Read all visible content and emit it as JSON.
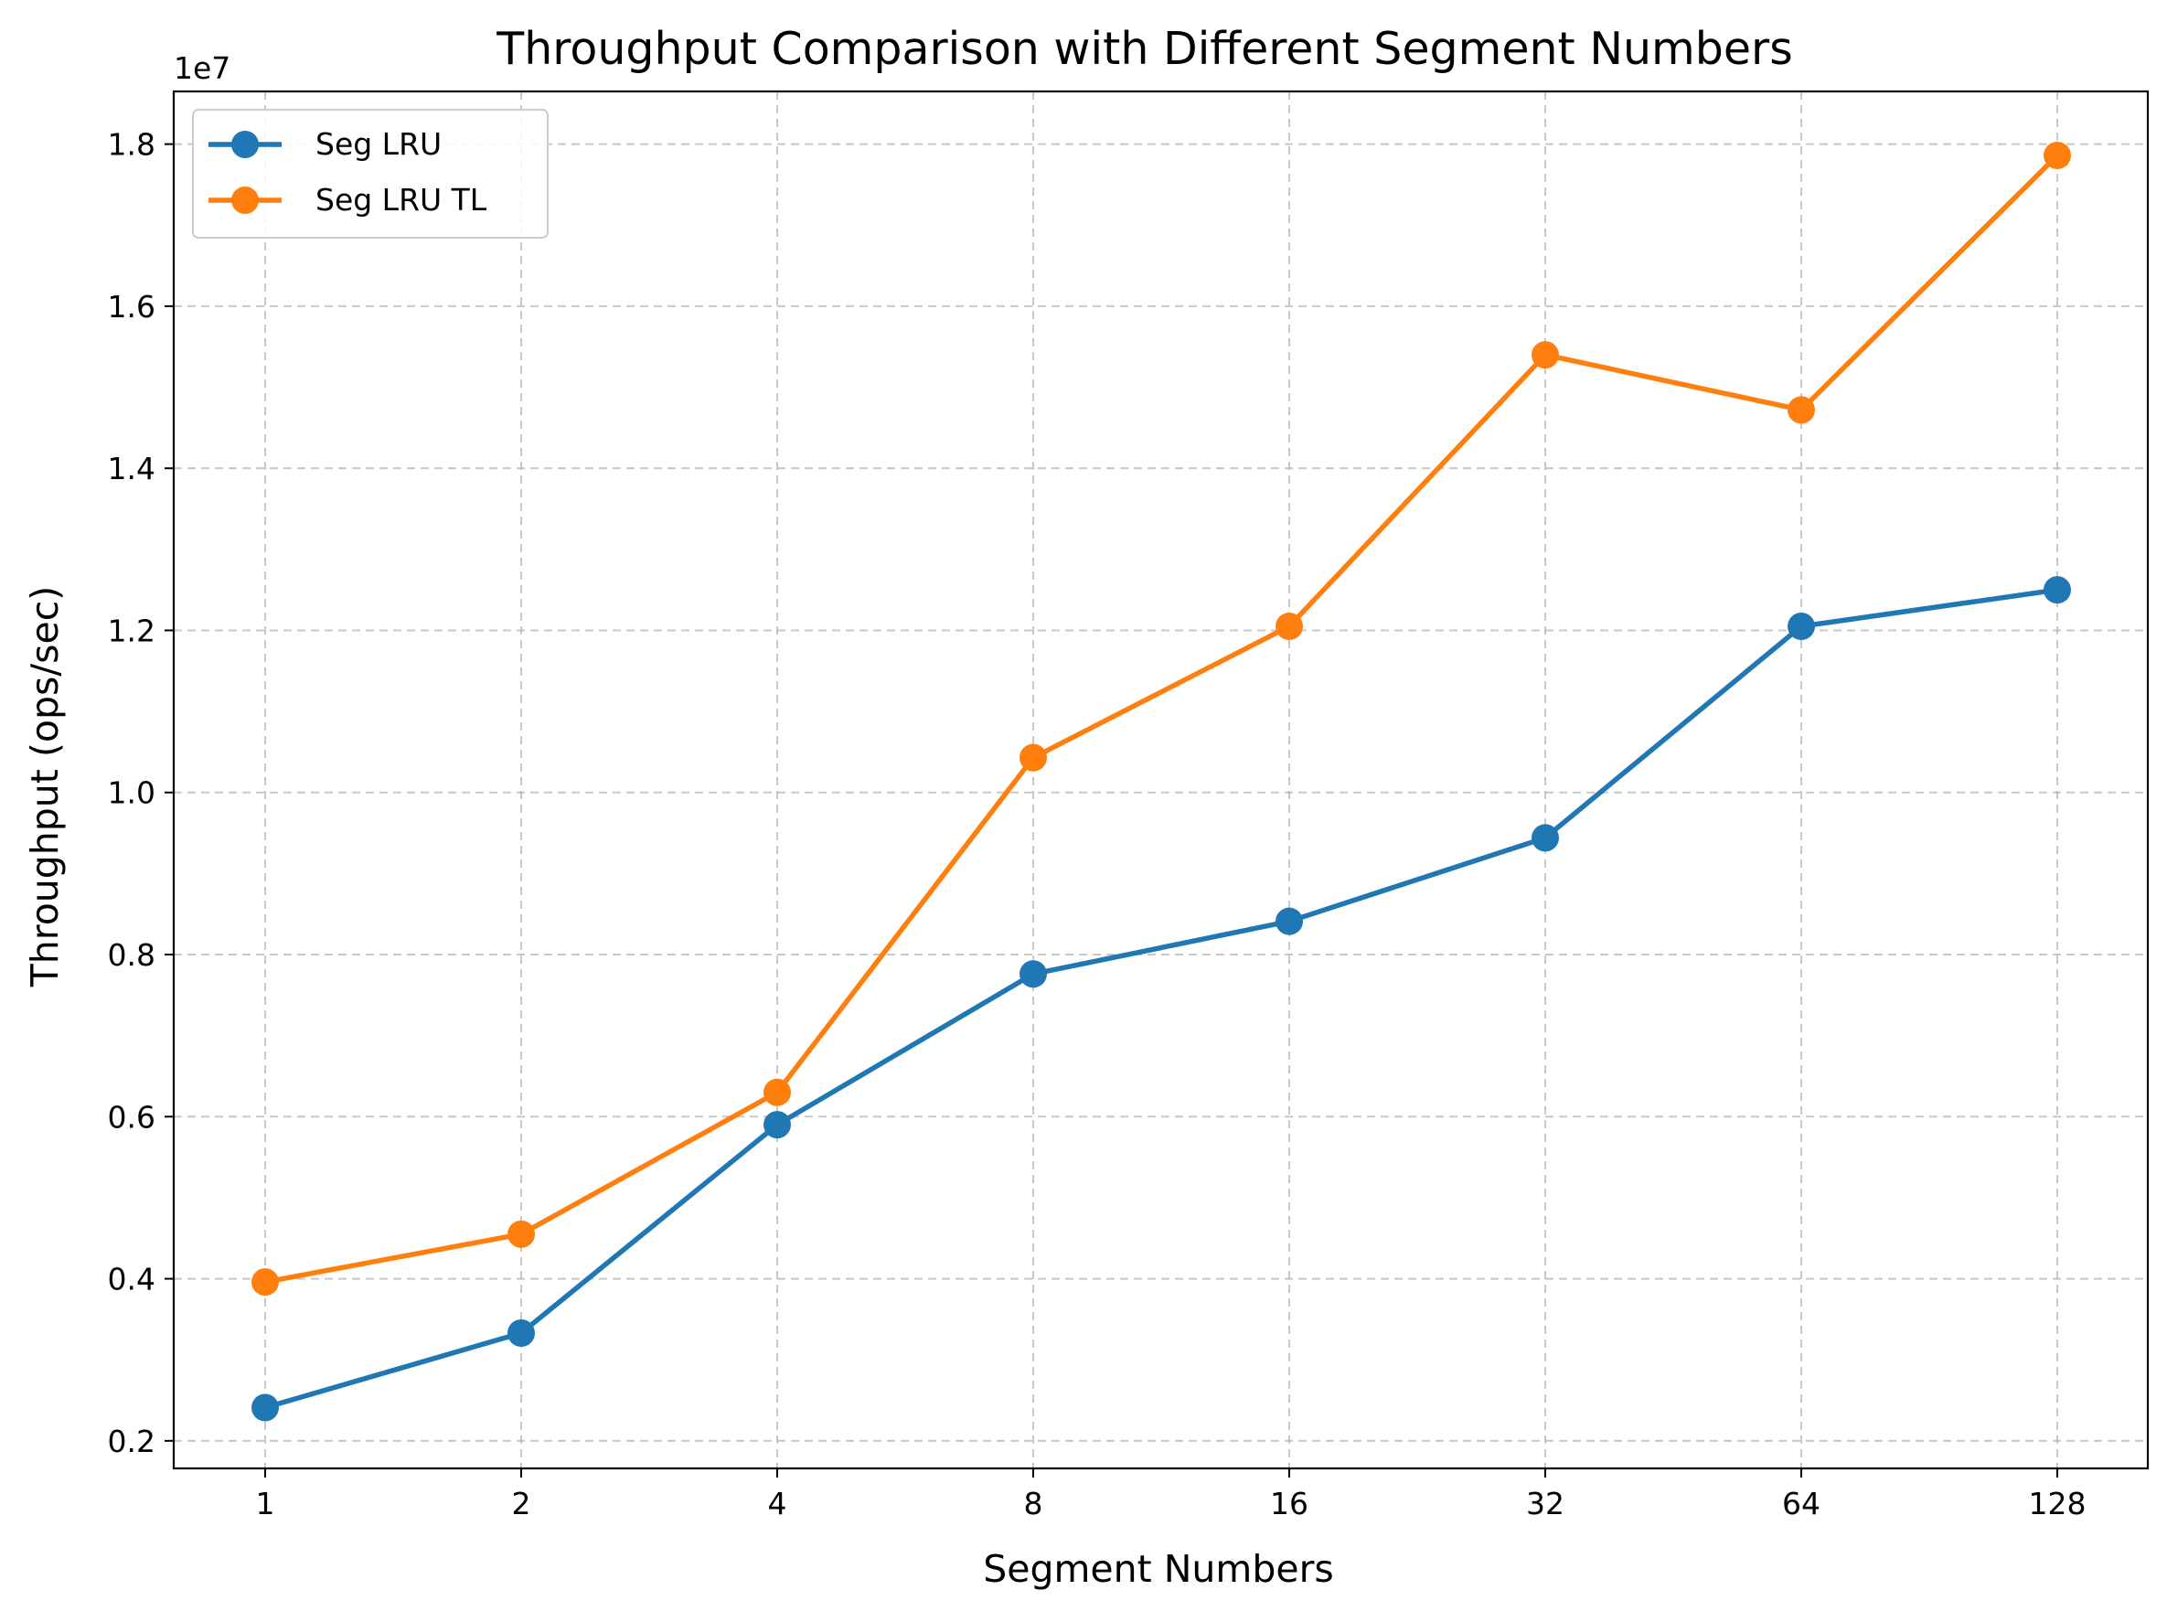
{
  "chart_data": {
    "type": "line",
    "title": "Throughput Comparison with Different Segment Numbers",
    "xlabel": "Segment Numbers",
    "ylabel": "Throughput (ops/sec)",
    "y_offset_label": "1e7",
    "categories": [
      "1",
      "2",
      "4",
      "8",
      "16",
      "32",
      "64",
      "128"
    ],
    "x_scale": "log2",
    "ylim": [
      1660000,
      18650000
    ],
    "yticks": [
      2000000,
      4000000,
      6000000,
      8000000,
      10000000,
      12000000,
      14000000,
      16000000,
      18000000
    ],
    "ytick_labels": [
      "0.2",
      "0.4",
      "0.6",
      "0.8",
      "1.0",
      "1.2",
      "1.4",
      "1.6",
      "1.8"
    ],
    "grid": true,
    "legend_position": "upper-left",
    "series": [
      {
        "name": "Seg LRU",
        "color": "#1f77b4",
        "marker": "circle",
        "values": [
          2410000,
          3330000,
          5900000,
          7760000,
          8410000,
          9440000,
          12050000,
          12500000
        ]
      },
      {
        "name": "Seg LRU TL",
        "color": "#ff7f0e",
        "marker": "circle",
        "values": [
          3960000,
          4550000,
          6300000,
          10430000,
          12050000,
          15400000,
          14720000,
          17860000
        ]
      }
    ]
  }
}
